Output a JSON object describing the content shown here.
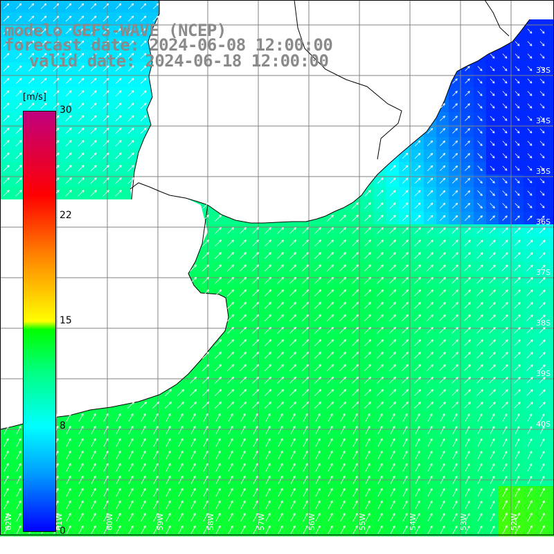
{
  "title": {
    "line1": "modelo GEFS-WAVE (NCEP)",
    "line2": "forecast date: 2024-06-08 12:00:00",
    "line3": "valid date: 2024-06-18 12:00:00"
  },
  "colorbar": {
    "unit": "[m/s]",
    "ticks": [
      "30",
      "22",
      "15",
      "8",
      "0"
    ],
    "colors": [
      "#0000ff",
      "#00a0ff",
      "#00ffff",
      "#00ff60",
      "#00ff00",
      "#ffff00",
      "#ff7f00",
      "#ff0000",
      "#c0007f"
    ]
  },
  "map": {
    "lat_labels": [
      "33S",
      "34S",
      "35S",
      "36S",
      "37S",
      "38S",
      "39S",
      "40S"
    ],
    "lon_labels": [
      "62W",
      "61W",
      "60W",
      "59W",
      "58W",
      "57W",
      "56W",
      "55W",
      "54W",
      "53W",
      "52W"
    ],
    "land_color": "#ffffff",
    "grid_color": "#808080",
    "coast_color": "#000000",
    "wind_field": {
      "variable": "wind speed",
      "units": "m/s",
      "range": [
        0,
        30
      ],
      "regional_speeds": [
        {
          "region": "northeast coast",
          "speed": 4
        },
        {
          "region": "estuary",
          "speed": 9
        },
        {
          "region": "central shelf",
          "speed": 10
        },
        {
          "region": "south",
          "speed": 12
        },
        {
          "region": "southeast corner",
          "speed": 15
        }
      ],
      "dominant_direction": "northeast"
    }
  }
}
